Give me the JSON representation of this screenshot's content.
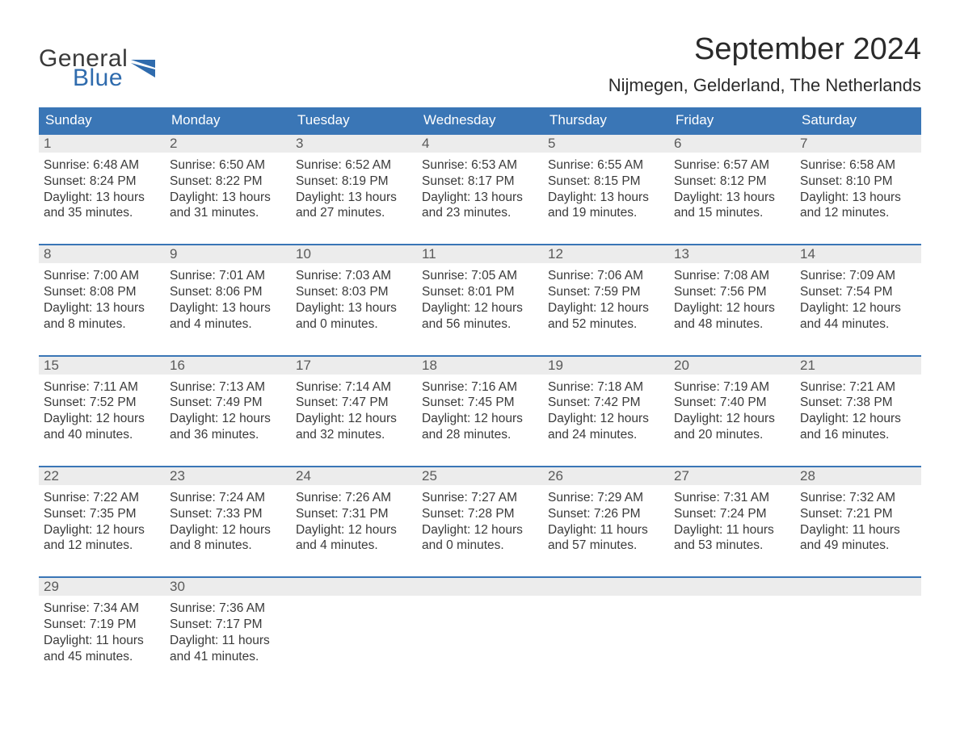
{
  "colors": {
    "header_bg": "#3a76b6",
    "header_text": "#ffffff",
    "daynum_bg": "#ececec",
    "border_top": "#3a76b6",
    "body_text": "#3a3a3a",
    "logo_blue": "#2f6bad",
    "page_bg": "#ffffff"
  },
  "logo": {
    "line1": "General",
    "line2": "Blue"
  },
  "title": "September 2024",
  "location": "Nijmegen, Gelderland, The Netherlands",
  "days_of_week": [
    "Sunday",
    "Monday",
    "Tuesday",
    "Wednesday",
    "Thursday",
    "Friday",
    "Saturday"
  ],
  "weeks": [
    [
      {
        "n": "1",
        "sr": "Sunrise: 6:48 AM",
        "ss": "Sunset: 8:24 PM",
        "d1": "Daylight: 13 hours",
        "d2": "and 35 minutes."
      },
      {
        "n": "2",
        "sr": "Sunrise: 6:50 AM",
        "ss": "Sunset: 8:22 PM",
        "d1": "Daylight: 13 hours",
        "d2": "and 31 minutes."
      },
      {
        "n": "3",
        "sr": "Sunrise: 6:52 AM",
        "ss": "Sunset: 8:19 PM",
        "d1": "Daylight: 13 hours",
        "d2": "and 27 minutes."
      },
      {
        "n": "4",
        "sr": "Sunrise: 6:53 AM",
        "ss": "Sunset: 8:17 PM",
        "d1": "Daylight: 13 hours",
        "d2": "and 23 minutes."
      },
      {
        "n": "5",
        "sr": "Sunrise: 6:55 AM",
        "ss": "Sunset: 8:15 PM",
        "d1": "Daylight: 13 hours",
        "d2": "and 19 minutes."
      },
      {
        "n": "6",
        "sr": "Sunrise: 6:57 AM",
        "ss": "Sunset: 8:12 PM",
        "d1": "Daylight: 13 hours",
        "d2": "and 15 minutes."
      },
      {
        "n": "7",
        "sr": "Sunrise: 6:58 AM",
        "ss": "Sunset: 8:10 PM",
        "d1": "Daylight: 13 hours",
        "d2": "and 12 minutes."
      }
    ],
    [
      {
        "n": "8",
        "sr": "Sunrise: 7:00 AM",
        "ss": "Sunset: 8:08 PM",
        "d1": "Daylight: 13 hours",
        "d2": "and 8 minutes."
      },
      {
        "n": "9",
        "sr": "Sunrise: 7:01 AM",
        "ss": "Sunset: 8:06 PM",
        "d1": "Daylight: 13 hours",
        "d2": "and 4 minutes."
      },
      {
        "n": "10",
        "sr": "Sunrise: 7:03 AM",
        "ss": "Sunset: 8:03 PM",
        "d1": "Daylight: 13 hours",
        "d2": "and 0 minutes."
      },
      {
        "n": "11",
        "sr": "Sunrise: 7:05 AM",
        "ss": "Sunset: 8:01 PM",
        "d1": "Daylight: 12 hours",
        "d2": "and 56 minutes."
      },
      {
        "n": "12",
        "sr": "Sunrise: 7:06 AM",
        "ss": "Sunset: 7:59 PM",
        "d1": "Daylight: 12 hours",
        "d2": "and 52 minutes."
      },
      {
        "n": "13",
        "sr": "Sunrise: 7:08 AM",
        "ss": "Sunset: 7:56 PM",
        "d1": "Daylight: 12 hours",
        "d2": "and 48 minutes."
      },
      {
        "n": "14",
        "sr": "Sunrise: 7:09 AM",
        "ss": "Sunset: 7:54 PM",
        "d1": "Daylight: 12 hours",
        "d2": "and 44 minutes."
      }
    ],
    [
      {
        "n": "15",
        "sr": "Sunrise: 7:11 AM",
        "ss": "Sunset: 7:52 PM",
        "d1": "Daylight: 12 hours",
        "d2": "and 40 minutes."
      },
      {
        "n": "16",
        "sr": "Sunrise: 7:13 AM",
        "ss": "Sunset: 7:49 PM",
        "d1": "Daylight: 12 hours",
        "d2": "and 36 minutes."
      },
      {
        "n": "17",
        "sr": "Sunrise: 7:14 AM",
        "ss": "Sunset: 7:47 PM",
        "d1": "Daylight: 12 hours",
        "d2": "and 32 minutes."
      },
      {
        "n": "18",
        "sr": "Sunrise: 7:16 AM",
        "ss": "Sunset: 7:45 PM",
        "d1": "Daylight: 12 hours",
        "d2": "and 28 minutes."
      },
      {
        "n": "19",
        "sr": "Sunrise: 7:18 AM",
        "ss": "Sunset: 7:42 PM",
        "d1": "Daylight: 12 hours",
        "d2": "and 24 minutes."
      },
      {
        "n": "20",
        "sr": "Sunrise: 7:19 AM",
        "ss": "Sunset: 7:40 PM",
        "d1": "Daylight: 12 hours",
        "d2": "and 20 minutes."
      },
      {
        "n": "21",
        "sr": "Sunrise: 7:21 AM",
        "ss": "Sunset: 7:38 PM",
        "d1": "Daylight: 12 hours",
        "d2": "and 16 minutes."
      }
    ],
    [
      {
        "n": "22",
        "sr": "Sunrise: 7:22 AM",
        "ss": "Sunset: 7:35 PM",
        "d1": "Daylight: 12 hours",
        "d2": "and 12 minutes."
      },
      {
        "n": "23",
        "sr": "Sunrise: 7:24 AM",
        "ss": "Sunset: 7:33 PM",
        "d1": "Daylight: 12 hours",
        "d2": "and 8 minutes."
      },
      {
        "n": "24",
        "sr": "Sunrise: 7:26 AM",
        "ss": "Sunset: 7:31 PM",
        "d1": "Daylight: 12 hours",
        "d2": "and 4 minutes."
      },
      {
        "n": "25",
        "sr": "Sunrise: 7:27 AM",
        "ss": "Sunset: 7:28 PM",
        "d1": "Daylight: 12 hours",
        "d2": "and 0 minutes."
      },
      {
        "n": "26",
        "sr": "Sunrise: 7:29 AM",
        "ss": "Sunset: 7:26 PM",
        "d1": "Daylight: 11 hours",
        "d2": "and 57 minutes."
      },
      {
        "n": "27",
        "sr": "Sunrise: 7:31 AM",
        "ss": "Sunset: 7:24 PM",
        "d1": "Daylight: 11 hours",
        "d2": "and 53 minutes."
      },
      {
        "n": "28",
        "sr": "Sunrise: 7:32 AM",
        "ss": "Sunset: 7:21 PM",
        "d1": "Daylight: 11 hours",
        "d2": "and 49 minutes."
      }
    ],
    [
      {
        "n": "29",
        "sr": "Sunrise: 7:34 AM",
        "ss": "Sunset: 7:19 PM",
        "d1": "Daylight: 11 hours",
        "d2": "and 45 minutes."
      },
      {
        "n": "30",
        "sr": "Sunrise: 7:36 AM",
        "ss": "Sunset: 7:17 PM",
        "d1": "Daylight: 11 hours",
        "d2": "and 41 minutes."
      },
      {
        "empty": true
      },
      {
        "empty": true
      },
      {
        "empty": true
      },
      {
        "empty": true
      },
      {
        "empty": true
      }
    ]
  ]
}
